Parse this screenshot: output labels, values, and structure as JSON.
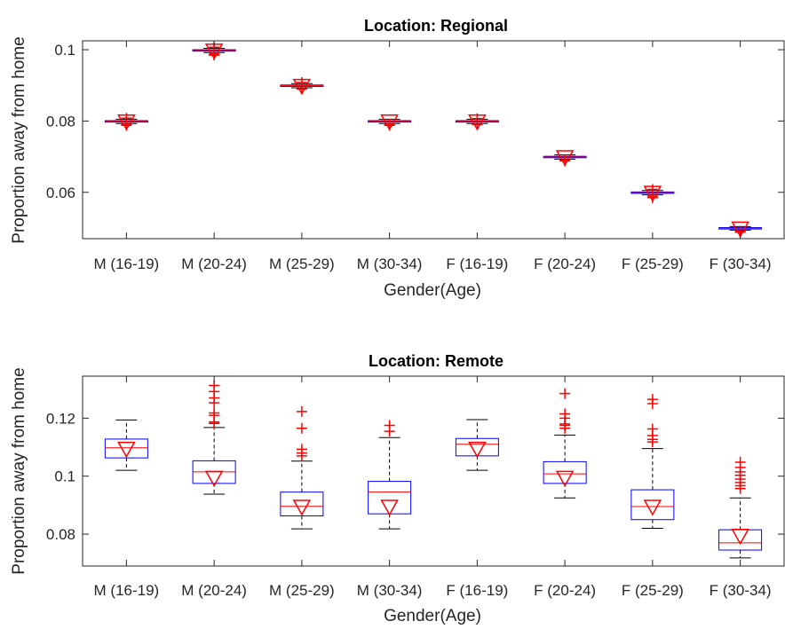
{
  "chart_data": [
    {
      "type": "boxplot",
      "title": "Location:  Regional",
      "xlabel": "Gender(Age)",
      "ylabel": "Proportion away from home",
      "categories": [
        "M (16-19)",
        "M (20-24)",
        "M (25-29)",
        "M (30-34)",
        "F (16-19)",
        "F (20-24)",
        "F (25-29)",
        "F (30-34)"
      ],
      "ylim": [
        0.047,
        0.1025
      ],
      "yticks": [
        0.06,
        0.08,
        0.1
      ],
      "ytick_labels": [
        "0.06",
        "0.08",
        "0.1"
      ],
      "boxes": [
        {
          "q1": 0.0797,
          "median": 0.0799,
          "q3": 0.0801,
          "whisker_low": 0.0793,
          "whisker_high": 0.0805,
          "outliers": [
            0.0788,
            0.0791,
            0.0808
          ],
          "mean": 0.0799
        },
        {
          "q1": 0.0996,
          "median": 0.0998,
          "q3": 0.1,
          "whisker_low": 0.0992,
          "whisker_high": 0.1004,
          "outliers": [
            0.0985,
            0.0988,
            0.1007
          ],
          "mean": 0.0998
        },
        {
          "q1": 0.0897,
          "median": 0.0899,
          "q3": 0.0901,
          "whisker_low": 0.0893,
          "whisker_high": 0.0905,
          "outliers": [
            0.089,
            0.0908
          ],
          "mean": 0.0899
        },
        {
          "q1": 0.0797,
          "median": 0.0799,
          "q3": 0.0801,
          "whisker_low": 0.0793,
          "whisker_high": 0.0805,
          "outliers": [
            0.0788,
            0.0791
          ],
          "mean": 0.0799
        },
        {
          "q1": 0.0797,
          "median": 0.0799,
          "q3": 0.0801,
          "whisker_low": 0.0793,
          "whisker_high": 0.0805,
          "outliers": [
            0.079,
            0.0807
          ],
          "mean": 0.0799
        },
        {
          "q1": 0.0697,
          "median": 0.0699,
          "q3": 0.0701,
          "whisker_low": 0.0693,
          "whisker_high": 0.0705,
          "outliers": [
            0.0688,
            0.0691
          ],
          "mean": 0.0699
        },
        {
          "q1": 0.0597,
          "median": 0.0599,
          "q3": 0.0601,
          "whisker_low": 0.0593,
          "whisker_high": 0.0605,
          "outliers": [
            0.0585,
            0.0589,
            0.0608
          ],
          "mean": 0.0599
        },
        {
          "q1": 0.0497,
          "median": 0.0499,
          "q3": 0.0501,
          "whisker_low": 0.0494,
          "whisker_high": 0.0504,
          "outliers": [
            0.0488,
            0.0491
          ],
          "mean": 0.0499
        }
      ],
      "colors": {
        "box": "#0000ff",
        "median": "#ff0000",
        "outlier": "#ff0000",
        "mean_marker": "#ff0000",
        "whisker": "#000000"
      }
    },
    {
      "type": "boxplot",
      "title": "Location:  Remote",
      "xlabel": "Gender(Age)",
      "ylabel": "Proportion away from home",
      "categories": [
        "M (16-19)",
        "M (20-24)",
        "M (25-29)",
        "M (30-34)",
        "F (16-19)",
        "F (20-24)",
        "F (25-29)",
        "F (30-34)"
      ],
      "ylim": [
        0.069,
        0.1345
      ],
      "yticks": [
        0.08,
        0.1,
        0.12
      ],
      "ytick_labels": [
        "0.08",
        "0.1",
        "0.12"
      ],
      "boxes": [
        {
          "q1": 0.1063,
          "median": 0.1098,
          "q3": 0.1128,
          "whisker_low": 0.102,
          "whisker_high": 0.1194,
          "outliers": [],
          "mean": 0.1095
        },
        {
          "q1": 0.0975,
          "median": 0.1015,
          "q3": 0.1053,
          "whisker_low": 0.0938,
          "whisker_high": 0.1168,
          "outliers": [
            0.1182,
            0.1187,
            0.121,
            0.1218,
            0.1253,
            0.127,
            0.1292,
            0.1313
          ],
          "mean": 0.0995
        },
        {
          "q1": 0.0863,
          "median": 0.0896,
          "q3": 0.0945,
          "whisker_low": 0.0818,
          "whisker_high": 0.1052,
          "outliers": [
            0.107,
            0.108,
            0.1093,
            0.1165,
            0.1223
          ],
          "mean": 0.0895
        },
        {
          "q1": 0.087,
          "median": 0.0945,
          "q3": 0.0982,
          "whisker_low": 0.0818,
          "whisker_high": 0.1133,
          "outliers": [
            0.1155,
            0.1175
          ],
          "mean": 0.0895
        },
        {
          "q1": 0.107,
          "median": 0.111,
          "q3": 0.113,
          "whisker_low": 0.102,
          "whisker_high": 0.1195,
          "outliers": [],
          "mean": 0.1095
        },
        {
          "q1": 0.0975,
          "median": 0.1008,
          "q3": 0.105,
          "whisker_low": 0.0925,
          "whisker_high": 0.1142,
          "outliers": [
            0.1165,
            0.1175,
            0.118,
            0.12,
            0.1215,
            0.1285
          ],
          "mean": 0.0995
        },
        {
          "q1": 0.085,
          "median": 0.0895,
          "q3": 0.0953,
          "whisker_low": 0.082,
          "whisker_high": 0.1095,
          "outliers": [
            0.1118,
            0.1127,
            0.114,
            0.1163,
            0.125,
            0.1265
          ],
          "mean": 0.0895
        },
        {
          "q1": 0.0745,
          "median": 0.077,
          "q3": 0.0815,
          "whisker_low": 0.0718,
          "whisker_high": 0.0925,
          "outliers": [
            0.0957,
            0.0967,
            0.0978,
            0.099,
            0.1003,
            0.1015,
            0.103,
            0.1048
          ],
          "mean": 0.0795
        },
        "__end__"
      ],
      "colors": {
        "box": "#0000ff",
        "median": "#ff0000",
        "outlier": "#ff0000",
        "mean_marker": "#ff0000",
        "whisker": "#000000"
      }
    }
  ]
}
